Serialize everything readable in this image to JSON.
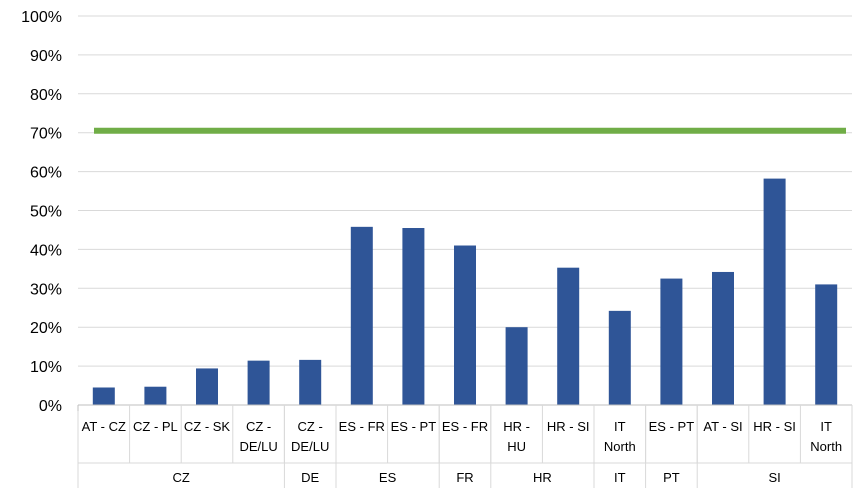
{
  "chart_data": {
    "type": "bar",
    "categories": [
      [
        "AT - CZ"
      ],
      [
        "CZ - PL"
      ],
      [
        "CZ - SK"
      ],
      [
        "CZ -",
        "DE/LU"
      ],
      [
        "CZ -",
        "DE/LU"
      ],
      [
        "ES - FR"
      ],
      [
        "ES - PT"
      ],
      [
        "ES - FR"
      ],
      [
        "HR -",
        "HU"
      ],
      [
        "HR - SI"
      ],
      [
        "IT",
        "North"
      ],
      [
        "ES - PT"
      ],
      [
        "AT - SI"
      ],
      [
        "HR - SI"
      ],
      [
        "IT",
        "North"
      ]
    ],
    "groups": [
      {
        "label": "CZ",
        "count": 4
      },
      {
        "label": "DE",
        "count": 1
      },
      {
        "label": "ES",
        "count": 2
      },
      {
        "label": "FR",
        "count": 1
      },
      {
        "label": "HR",
        "count": 2
      },
      {
        "label": "IT",
        "count": 1
      },
      {
        "label": "PT",
        "count": 1
      },
      {
        "label": "SI",
        "count": 3
      }
    ],
    "values": [
      4.5,
      4.7,
      9.4,
      11.4,
      11.6,
      45.8,
      45.5,
      41.0,
      20.0,
      35.3,
      24.2,
      32.5,
      34.2,
      58.2,
      31.0
    ],
    "reference_line": {
      "value": 70.5,
      "color": "#70ad47"
    },
    "bar_color": "#2f5597",
    "ylim": [
      0,
      100
    ],
    "yticks": [
      "0%",
      "10%",
      "20%",
      "30%",
      "40%",
      "50%",
      "60%",
      "70%",
      "80%",
      "90%",
      "100%"
    ],
    "grid": true,
    "title": "",
    "xlabel": "",
    "ylabel": ""
  }
}
